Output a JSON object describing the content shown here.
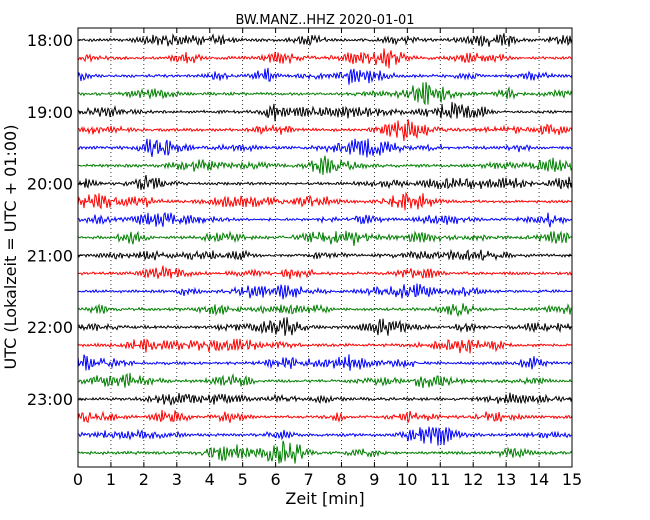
{
  "chart_data": {
    "type": "line",
    "title": "BW.MANZ..HHZ 2020-01-01",
    "xlabel": "Zeit  [min]",
    "ylabel": "UTC (Lokalzeit = UTC + 01:00)",
    "xlim": [
      0,
      15
    ],
    "x_ticks": [
      "0",
      "1",
      "2",
      "3",
      "4",
      "5",
      "6",
      "7",
      "8",
      "9",
      "10",
      "11",
      "12",
      "13",
      "14",
      "15"
    ],
    "y_tick_labels": [
      "18:00",
      "19:00",
      "20:00",
      "21:00",
      "22:00",
      "23:00"
    ],
    "grid": "vertical dotted at each minute",
    "trace_interval_minutes": 15,
    "traces": [
      {
        "start": "18:00",
        "color": "#000000"
      },
      {
        "start": "18:15",
        "color": "#ff0000"
      },
      {
        "start": "18:30",
        "color": "#0000ff"
      },
      {
        "start": "18:45",
        "color": "#007f00"
      },
      {
        "start": "19:00",
        "color": "#000000"
      },
      {
        "start": "19:15",
        "color": "#ff0000"
      },
      {
        "start": "19:30",
        "color": "#0000ff"
      },
      {
        "start": "19:45",
        "color": "#007f00"
      },
      {
        "start": "20:00",
        "color": "#000000"
      },
      {
        "start": "20:15",
        "color": "#ff0000"
      },
      {
        "start": "20:30",
        "color": "#0000ff"
      },
      {
        "start": "20:45",
        "color": "#007f00"
      },
      {
        "start": "21:00",
        "color": "#000000"
      },
      {
        "start": "21:15",
        "color": "#ff0000"
      },
      {
        "start": "21:30",
        "color": "#0000ff"
      },
      {
        "start": "21:45",
        "color": "#007f00"
      },
      {
        "start": "22:00",
        "color": "#000000"
      },
      {
        "start": "22:15",
        "color": "#ff0000"
      },
      {
        "start": "22:30",
        "color": "#0000ff"
      },
      {
        "start": "22:45",
        "color": "#007f00"
      },
      {
        "start": "23:00",
        "color": "#000000"
      },
      {
        "start": "23:15",
        "color": "#ff0000"
      },
      {
        "start": "23:30",
        "color": "#0000ff"
      },
      {
        "start": "23:45",
        "color": "#007f00"
      }
    ]
  }
}
